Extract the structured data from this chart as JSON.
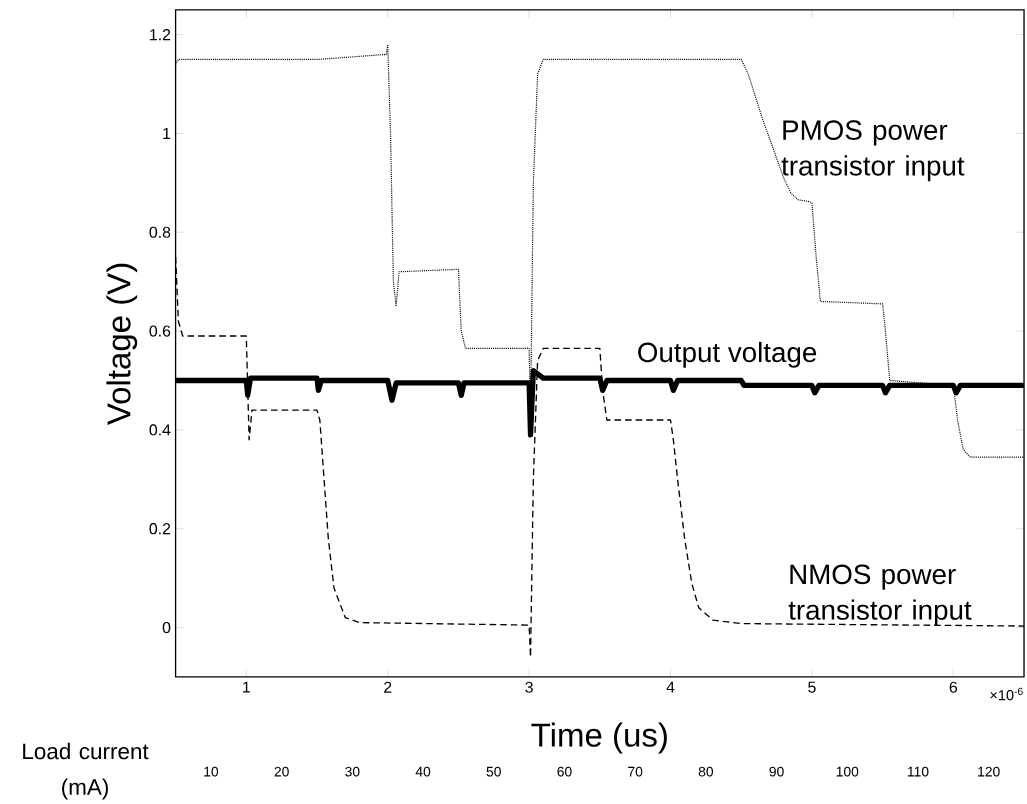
{
  "chart_data": {
    "type": "line",
    "xlabel": "Time (us)",
    "ylabel": "Voltage (V)",
    "xlim": [
      0.5,
      6.5
    ],
    "ylim": [
      -0.1,
      1.25
    ],
    "xticks": [
      1,
      2,
      3,
      4,
      5,
      6
    ],
    "yticks": [
      0,
      0.2,
      0.4,
      0.6,
      0.8,
      1,
      1.2
    ],
    "x2label": "Load current (mA)",
    "x2lim": [
      5,
      125
    ],
    "x2ticks": [
      10,
      20,
      30,
      40,
      50,
      60,
      70,
      80,
      90,
      100,
      110,
      120
    ],
    "annotations": [
      "×10$^{-6}$"
    ],
    "legend": false,
    "grid": false,
    "marker": "none",
    "series": [
      {
        "name": "PMOS power transistor input",
        "color": "#000000",
        "line_style": "dotted",
        "x": [
          0.5,
          0.52,
          1.0,
          1.02,
          1.5,
          1.52,
          1.99,
          2.0,
          2.02,
          2.04,
          2.06,
          2.08,
          2.5,
          2.52,
          2.55,
          3.0,
          3.01,
          3.03,
          3.06,
          3.1,
          4.5,
          4.55,
          4.65,
          4.75,
          4.8,
          4.85,
          4.9,
          4.98,
          5.0,
          5.03,
          5.06,
          5.5,
          5.52,
          5.55,
          6.0,
          6.03,
          6.07,
          6.12,
          6.5
        ],
        "values": [
          1.14,
          1.15,
          1.15,
          1.15,
          1.15,
          1.15,
          1.16,
          1.18,
          1.0,
          0.7,
          0.65,
          0.72,
          0.725,
          0.6,
          0.565,
          0.565,
          0.43,
          0.9,
          1.12,
          1.15,
          1.15,
          1.12,
          1.03,
          0.95,
          0.91,
          0.88,
          0.866,
          0.862,
          0.86,
          0.75,
          0.66,
          0.655,
          0.6,
          0.5,
          0.49,
          0.42,
          0.36,
          0.345,
          0.345
        ]
      },
      {
        "name": "Output voltage",
        "color": "#000000",
        "line_style": "solid",
        "x": [
          0.5,
          1.0,
          1.01,
          1.03,
          1.5,
          1.51,
          1.53,
          2.0,
          2.03,
          2.06,
          2.5,
          2.52,
          2.54,
          3.0,
          3.01,
          3.03,
          3.1,
          3.5,
          3.52,
          3.55,
          4.0,
          4.02,
          4.05,
          4.5,
          4.52,
          5.0,
          5.02,
          5.05,
          5.5,
          5.52,
          5.55,
          6.0,
          6.02,
          6.05,
          6.5
        ],
        "values": [
          0.5,
          0.5,
          0.47,
          0.505,
          0.505,
          0.48,
          0.5,
          0.5,
          0.46,
          0.495,
          0.495,
          0.47,
          0.495,
          0.495,
          0.39,
          0.52,
          0.505,
          0.505,
          0.48,
          0.5,
          0.5,
          0.48,
          0.5,
          0.5,
          0.49,
          0.49,
          0.475,
          0.49,
          0.49,
          0.475,
          0.49,
          0.49,
          0.475,
          0.49,
          0.49
        ]
      },
      {
        "name": "NMOS power transistor input",
        "color": "#000000",
        "line_style": "dashed",
        "x": [
          0.5,
          0.52,
          0.55,
          1.0,
          1.02,
          1.04,
          1.5,
          1.52,
          1.55,
          1.58,
          1.62,
          1.7,
          1.8,
          3.0,
          3.01,
          3.03,
          3.06,
          3.1,
          3.5,
          3.52,
          3.55,
          4.0,
          4.02,
          4.05,
          4.1,
          4.15,
          4.2,
          4.3,
          4.5,
          6.5
        ],
        "values": [
          0.75,
          0.62,
          0.59,
          0.59,
          0.38,
          0.44,
          0.44,
          0.42,
          0.3,
          0.18,
          0.08,
          0.02,
          0.01,
          0.005,
          -0.06,
          0.3,
          0.54,
          0.565,
          0.565,
          0.48,
          0.42,
          0.42,
          0.38,
          0.3,
          0.18,
          0.09,
          0.04,
          0.015,
          0.008,
          0.003
        ]
      }
    ]
  }
}
